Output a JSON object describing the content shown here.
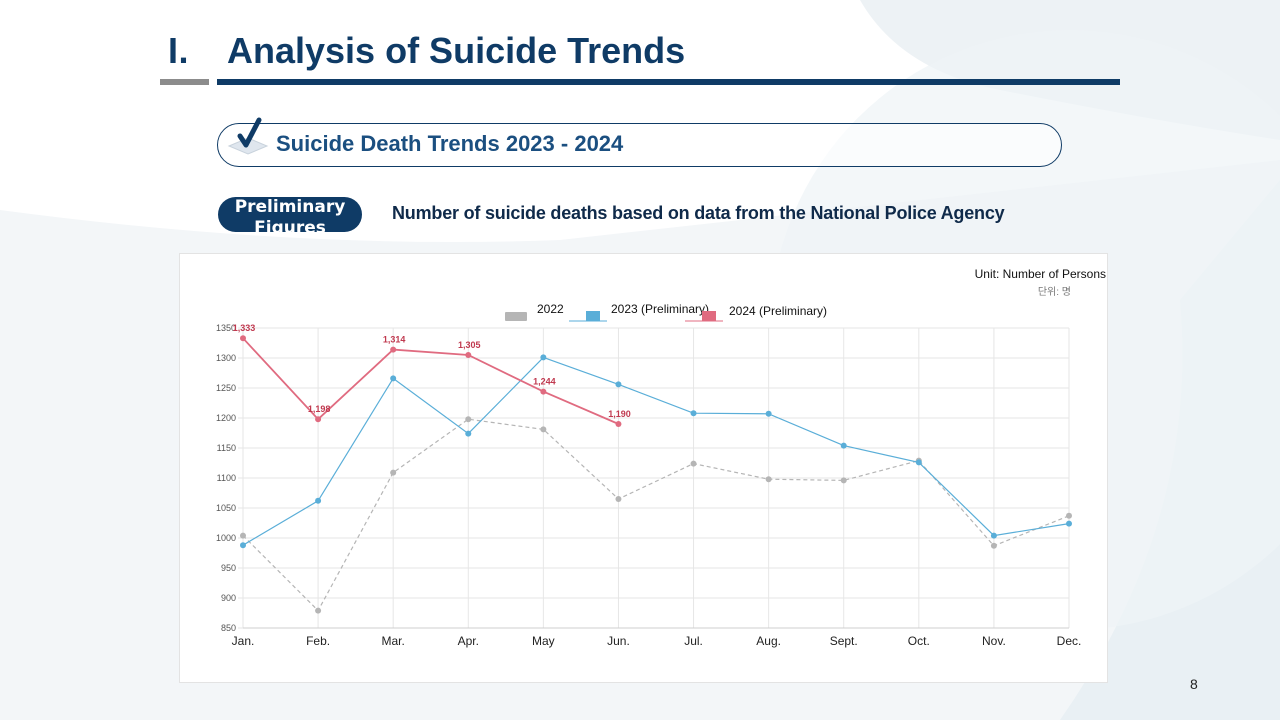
{
  "header": {
    "section_number": "I.",
    "title": "Analysis of Suicide Trends"
  },
  "section_banner": {
    "title": "Suicide Death Trends 2023 - 2024",
    "icon": "check-icon"
  },
  "preliminary_badge": "Preliminary Figures",
  "subtitle": "Number of suicide deaths based on data from the National Police Agency",
  "page_number": "8",
  "colors": {
    "navy": "#0f3b66",
    "series_2022": "#b5b5b5",
    "series_2023": "#5aaed8",
    "series_2024": "#e06b80"
  },
  "chart_data": {
    "type": "line",
    "unit_label": "Unit: Number of Persons",
    "unit_label_kr": "단위: 명",
    "categories": [
      "Jan.",
      "Feb.",
      "Mar.",
      "Apr.",
      "May",
      "Jun.",
      "Jul.",
      "Aug.",
      "Sept.",
      "Oct.",
      "Nov.",
      "Dec."
    ],
    "ylim": [
      850,
      1350
    ],
    "yticks": [
      850,
      900,
      950,
      1000,
      1050,
      1100,
      1150,
      1200,
      1250,
      1300,
      1350
    ],
    "grid": true,
    "legend_position": "top-center",
    "series": [
      {
        "name": "2022",
        "style": "dashed",
        "values": [
          1004,
          879,
          1109,
          1198,
          1181,
          1065,
          1124,
          1098,
          1096,
          1129,
          987,
          1037
        ]
      },
      {
        "name": "2023 (Preliminary)",
        "style": "solid",
        "values": [
          988,
          1062,
          1266,
          1174,
          1301,
          1256,
          1208,
          1207,
          1154,
          1126,
          1004,
          1024
        ]
      },
      {
        "name": "2024 (Preliminary)",
        "style": "solid",
        "values": [
          1333,
          1198,
          1314,
          1305,
          1244,
          1190,
          null,
          null,
          null,
          null,
          null,
          null
        ],
        "data_labels": [
          "1,333",
          "1,198",
          "1,314",
          "1,305",
          "1,244",
          "1,190"
        ]
      }
    ]
  }
}
